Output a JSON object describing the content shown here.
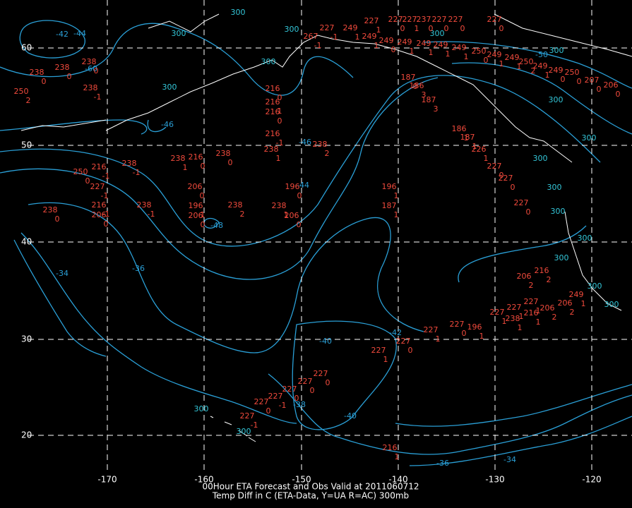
{
  "map": {
    "caption": [
      "00Hour ETA Forecast and Obs Valid at 2011060712",
      "Temp Diff in C (ETA-Data, Y=UA R=AC) 300mb"
    ],
    "lon_labels": [
      "-170",
      "-160",
      "-150",
      "-140",
      "-130",
      "-120"
    ],
    "lat_labels": [
      "60",
      "50",
      "40",
      "30",
      "20"
    ],
    "contour_labels": [
      "-42",
      "-44",
      "-46",
      "-46",
      "-44",
      "-48",
      "-34",
      "-36",
      "-40",
      "-42",
      "-38",
      "-40",
      "-36",
      "-34",
      "-50",
      "-60"
    ],
    "heights": [
      "300",
      "300",
      "300",
      "300",
      "300",
      "300",
      "300",
      "300",
      "300",
      "300",
      "300",
      "300",
      "300",
      "300",
      "300",
      "300",
      "300",
      "300"
    ],
    "stations": [
      {
        "temp": "250",
        "diff": "2"
      },
      {
        "temp": "238",
        "diff": "0"
      },
      {
        "temp": "238",
        "diff": "0"
      },
      {
        "temp": "238",
        "diff": "-1"
      },
      {
        "temp": "238",
        "diff": "0"
      },
      {
        "temp": "250",
        "diff": "0"
      },
      {
        "temp": "216",
        "diff": "-1"
      },
      {
        "temp": "227",
        "diff": "-1"
      },
      {
        "temp": "216",
        "diff": "-1"
      },
      {
        "temp": "206",
        "diff": "0"
      },
      {
        "temp": "238",
        "diff": "0"
      },
      {
        "temp": "238",
        "diff": "-1"
      },
      {
        "temp": "238",
        "diff": "-1"
      },
      {
        "temp": "238",
        "diff": "1"
      },
      {
        "temp": "216",
        "diff": "0"
      },
      {
        "temp": "206",
        "diff": "0"
      },
      {
        "temp": "196",
        "diff": "1"
      },
      {
        "temp": "206",
        "diff": "0"
      },
      {
        "temp": "238",
        "diff": "0"
      },
      {
        "temp": "238",
        "diff": "2"
      },
      {
        "temp": "216",
        "diff": "-1"
      },
      {
        "temp": "216",
        "diff": "0"
      },
      {
        "temp": "216",
        "diff": "1"
      },
      {
        "temp": "216",
        "diff": "0"
      },
      {
        "temp": "238",
        "diff": "1"
      },
      {
        "temp": "238",
        "diff": "2"
      },
      {
        "temp": "196",
        "diff": "0"
      },
      {
        "temp": "238",
        "diff": "1"
      },
      {
        "temp": "206",
        "diff": "0"
      },
      {
        "temp": "196",
        "diff": "1"
      },
      {
        "temp": "187",
        "diff": "1"
      },
      {
        "temp": "187",
        "diff": "0"
      },
      {
        "temp": "186",
        "diff": "3"
      },
      {
        "temp": "187",
        "diff": "3"
      },
      {
        "temp": "186",
        "diff": "1"
      },
      {
        "temp": "187",
        "diff": "1"
      },
      {
        "temp": "226",
        "diff": "1"
      },
      {
        "temp": "227",
        "diff": "0"
      },
      {
        "temp": "227",
        "diff": "0"
      },
      {
        "temp": "227",
        "diff": "0"
      },
      {
        "temp": "227",
        "diff": "1"
      },
      {
        "temp": "227",
        "diff": "0"
      },
      {
        "temp": "227",
        "diff": "1"
      },
      {
        "temp": "227",
        "diff": "0"
      },
      {
        "temp": "196",
        "diff": "1"
      },
      {
        "temp": "227",
        "diff": "1"
      },
      {
        "temp": "238",
        "diff": "1"
      },
      {
        "temp": "216",
        "diff": "1"
      },
      {
        "temp": "206",
        "diff": "2"
      },
      {
        "temp": "206",
        "diff": "2"
      },
      {
        "temp": "216",
        "diff": "2"
      },
      {
        "temp": "206",
        "diff": "2"
      },
      {
        "temp": "227",
        "diff": "1"
      },
      {
        "temp": "227",
        "diff": "1"
      },
      {
        "temp": "249",
        "diff": "1"
      },
      {
        "temp": "227",
        "diff": "0"
      },
      {
        "temp": "227",
        "diff": "0"
      },
      {
        "temp": "227",
        "diff": "0"
      },
      {
        "temp": "227",
        "diff": "-1"
      },
      {
        "temp": "227",
        "diff": "0"
      },
      {
        "temp": "227",
        "diff": "-1"
      },
      {
        "temp": "216",
        "diff": "1"
      },
      {
        "temp": "227",
        "diff": "-1"
      },
      {
        "temp": "267",
        "diff": "-1"
      },
      {
        "temp": "249",
        "diff": "1"
      },
      {
        "temp": "227",
        "diff": "1"
      },
      {
        "temp": "227",
        "diff": "0"
      },
      {
        "temp": "227",
        "diff": "1"
      },
      {
        "temp": "237",
        "diff": "0"
      },
      {
        "temp": "227",
        "diff": "0"
      },
      {
        "temp": "227",
        "diff": "0"
      },
      {
        "temp": "227",
        "diff": "0"
      },
      {
        "temp": "249",
        "diff": "1"
      },
      {
        "temp": "249",
        "diff": "0"
      },
      {
        "temp": "249",
        "diff": "1"
      },
      {
        "temp": "249",
        "diff": "1"
      },
      {
        "temp": "249",
        "diff": "1"
      },
      {
        "temp": "249",
        "diff": "1"
      },
      {
        "temp": "250",
        "diff": "0"
      },
      {
        "temp": "249",
        "diff": "1"
      },
      {
        "temp": "249",
        "diff": "1"
      },
      {
        "temp": "250",
        "diff": "2"
      },
      {
        "temp": "249",
        "diff": "1"
      },
      {
        "temp": "249",
        "diff": "0"
      },
      {
        "temp": "250",
        "diff": "0"
      },
      {
        "temp": "207",
        "diff": "0"
      },
      {
        "temp": "206",
        "diff": "0"
      }
    ]
  }
}
